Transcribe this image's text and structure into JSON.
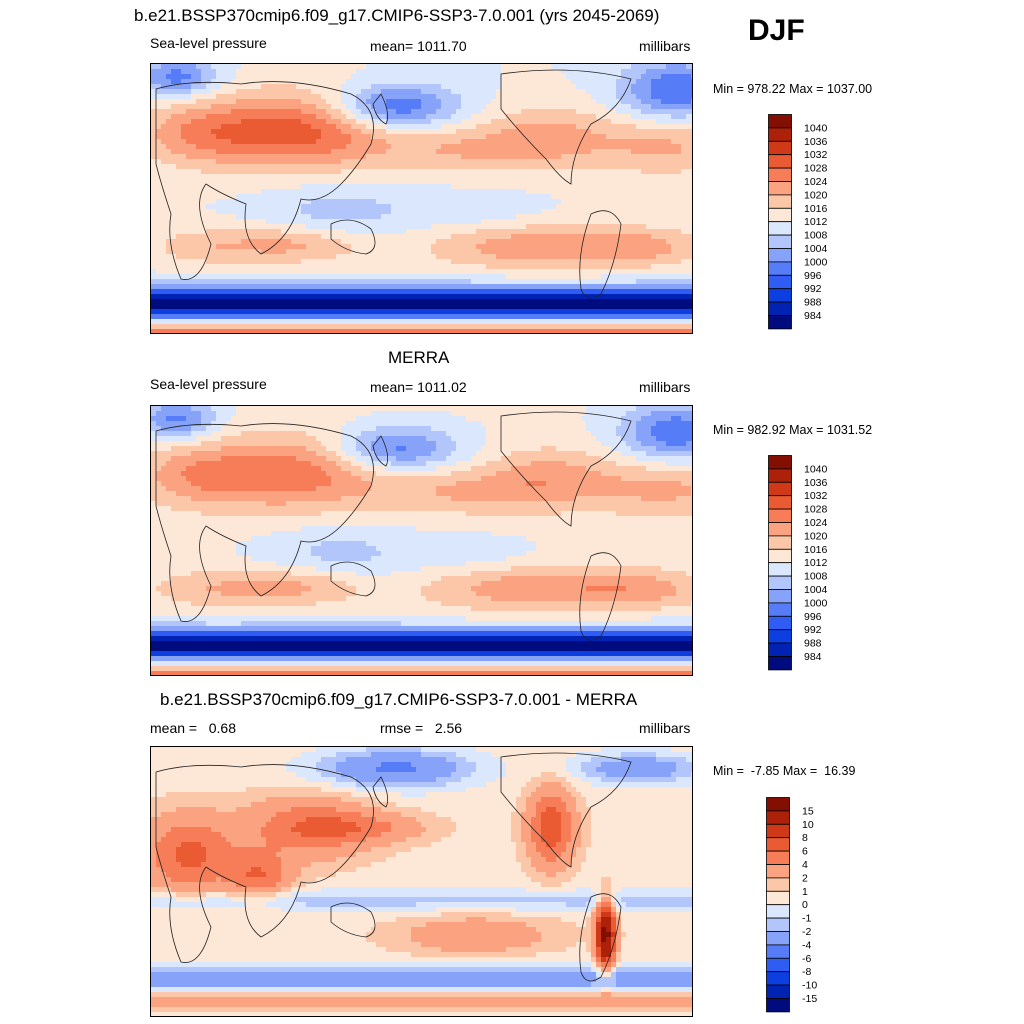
{
  "season": "DJF",
  "palette_pressure": [
    "#000c7d",
    "#0023b3",
    "#0c3ee0",
    "#2f5cf2",
    "#577cf7",
    "#86a2f9",
    "#b3c6fb",
    "#dbe7fd",
    "#fde7d6",
    "#fcc7a8",
    "#fba381",
    "#f67d57",
    "#ea5a33",
    "#d03918",
    "#ad2009",
    "#830f03"
  ],
  "palette_diff": [
    "#000c7d",
    "#0023b3",
    "#0c3ee0",
    "#2f5cf2",
    "#577cf7",
    "#86a2f9",
    "#b3c6fb",
    "#dbe7fd",
    "#fde7d6",
    "#fcc7a8",
    "#fba381",
    "#f67d57",
    "#ea5a33",
    "#d03918",
    "#ad2009",
    "#830f03"
  ],
  "panels": [
    {
      "title": "b.e21.BSSP370cmip6.f09_g17.CMIP6-SSP3-7.0.001 (yrs 2045-2069)",
      "left_label": "Sea-level pressure",
      "center_label": "mean= 1011.70",
      "right_label": "millibars",
      "minmax": "Min = 978.22 Max = 1037.00",
      "colorbar_labels": [
        "1040",
        "1036",
        "1032",
        "1028",
        "1024",
        "1020",
        "1016",
        "1012",
        "1008",
        "1004",
        "1000",
        "996",
        "992",
        "988",
        "984"
      ],
      "field": "model"
    },
    {
      "title": "MERRA",
      "left_label": "Sea-level pressure",
      "center_label": "mean= 1011.02",
      "right_label": "millibars",
      "minmax": "Min = 982.92 Max = 1031.52",
      "colorbar_labels": [
        "1040",
        "1036",
        "1032",
        "1028",
        "1024",
        "1020",
        "1016",
        "1012",
        "1008",
        "1004",
        "1000",
        "996",
        "992",
        "988",
        "984"
      ],
      "field": "obs"
    },
    {
      "title": "b.e21.BSSP370cmip6.f09_g17.CMIP6-SSP3-7.0.001 - MERRA",
      "left_label": "mean =   0.68",
      "center_label": "rmse =   2.56",
      "right_label": "millibars",
      "minmax": "Min =  -7.85 Max =  16.39",
      "colorbar_labels": [
        "15",
        "10",
        "8",
        "6",
        "4",
        "2",
        "1",
        "0",
        "-1",
        "-2",
        "-4",
        "-6",
        "-8",
        "-10",
        "-15"
      ],
      "field": "diff"
    }
  ]
}
